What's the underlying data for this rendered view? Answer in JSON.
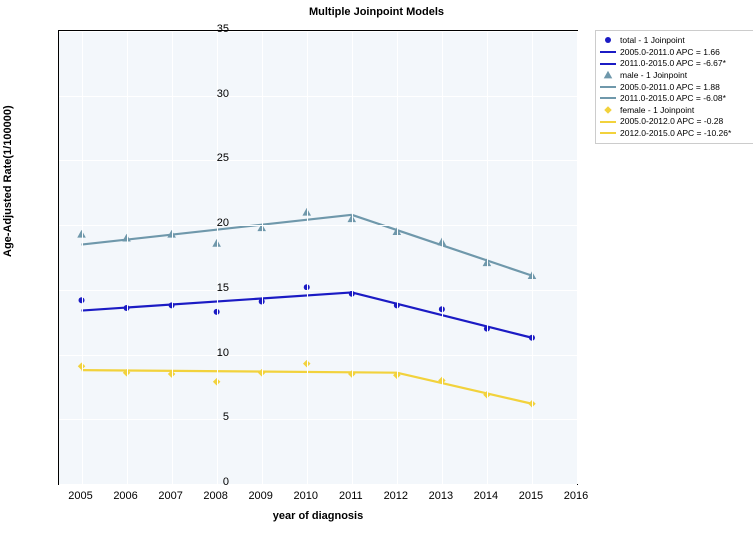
{
  "chart": {
    "type": "line",
    "title": "Multiple Joinpoint Models",
    "xlabel": "year of diagnosis",
    "ylabel": "Age-Adjusted Rate(1/100000)",
    "background_color": "#f3f7fb",
    "grid_color": "#ffffff",
    "axis_color": "#000000",
    "xlim": [
      2004.5,
      2016
    ],
    "ylim": [
      0,
      35
    ],
    "xticks": [
      2005,
      2006,
      2007,
      2008,
      2009,
      2010,
      2011,
      2012,
      2013,
      2014,
      2015,
      2016
    ],
    "yticks": [
      0,
      5,
      10,
      15,
      20,
      25,
      30,
      35
    ],
    "title_fontsize": 11,
    "label_fontsize": 11,
    "tick_fontsize": 11,
    "series": {
      "total_points": {
        "type": "scatter",
        "marker": "circle",
        "color": "#1b1bc4",
        "size": 6,
        "x": [
          2005,
          2006,
          2007,
          2008,
          2009,
          2010,
          2011,
          2012,
          2013,
          2014,
          2015
        ],
        "y": [
          14.2,
          13.6,
          13.8,
          13.3,
          14.1,
          15.2,
          14.7,
          13.8,
          13.5,
          12.0,
          11.3
        ]
      },
      "total_line1": {
        "type": "line",
        "color": "#1b1bc4",
        "width": 2.2,
        "x": [
          2005,
          2011
        ],
        "y": [
          13.4,
          14.8
        ]
      },
      "total_line2": {
        "type": "line",
        "color": "#1b1bc4",
        "width": 2.2,
        "x": [
          2011,
          2015
        ],
        "y": [
          14.8,
          11.3
        ]
      },
      "male_points": {
        "type": "scatter",
        "marker": "triangle",
        "color": "#6f98ab",
        "size": 6,
        "x": [
          2005,
          2006,
          2007,
          2008,
          2009,
          2010,
          2011,
          2012,
          2013,
          2014,
          2015
        ],
        "y": [
          19.3,
          19.0,
          19.3,
          18.6,
          19.8,
          21.0,
          20.5,
          19.5,
          18.7,
          17.1,
          16.1
        ]
      },
      "male_line1": {
        "type": "line",
        "color": "#6f98ab",
        "width": 2.2,
        "x": [
          2005,
          2011
        ],
        "y": [
          18.5,
          20.8
        ]
      },
      "male_line2": {
        "type": "line",
        "color": "#6f98ab",
        "width": 2.2,
        "x": [
          2011,
          2015
        ],
        "y": [
          20.8,
          16.1
        ]
      },
      "female_points": {
        "type": "scatter",
        "marker": "diamond",
        "color": "#f2d23c",
        "size": 6,
        "x": [
          2005,
          2006,
          2007,
          2008,
          2009,
          2010,
          2011,
          2012,
          2013,
          2014,
          2015
        ],
        "y": [
          9.1,
          8.6,
          8.5,
          7.9,
          8.6,
          9.3,
          8.5,
          8.4,
          8.0,
          6.9,
          6.2
        ]
      },
      "female_line1": {
        "type": "line",
        "color": "#f2d23c",
        "width": 2.2,
        "x": [
          2005,
          2012
        ],
        "y": [
          8.8,
          8.6
        ]
      },
      "female_line2": {
        "type": "line",
        "color": "#f2d23c",
        "width": 2.2,
        "x": [
          2012,
          2015
        ],
        "y": [
          8.6,
          6.2
        ]
      }
    },
    "legend": {
      "rows": [
        {
          "kind": "marker",
          "marker": "circle",
          "color": "#1b1bc4",
          "label": "total - 1 Joinpoint"
        },
        {
          "kind": "line",
          "color": "#1b1bc4",
          "label": "2005.0-2011.0 APC  =  1.66"
        },
        {
          "kind": "line",
          "color": "#1b1bc4",
          "label": "2011.0-2015.0 APC  =  -6.67*"
        },
        {
          "kind": "marker",
          "marker": "triangle",
          "color": "#6f98ab",
          "label": "male - 1 Joinpoint"
        },
        {
          "kind": "line",
          "color": "#6f98ab",
          "label": "2005.0-2011.0 APC  =  1.88"
        },
        {
          "kind": "line",
          "color": "#6f98ab",
          "label": "2011.0-2015.0 APC  =  -6.08*"
        },
        {
          "kind": "marker",
          "marker": "diamond",
          "color": "#f2d23c",
          "label": "female - 1 Joinpoint"
        },
        {
          "kind": "line",
          "color": "#f2d23c",
          "label": "2005.0-2012.0 APC  =  -0.28"
        },
        {
          "kind": "line",
          "color": "#f2d23c",
          "label": "2012.0-2015.0 APC  =  -10.26*"
        }
      ]
    }
  }
}
